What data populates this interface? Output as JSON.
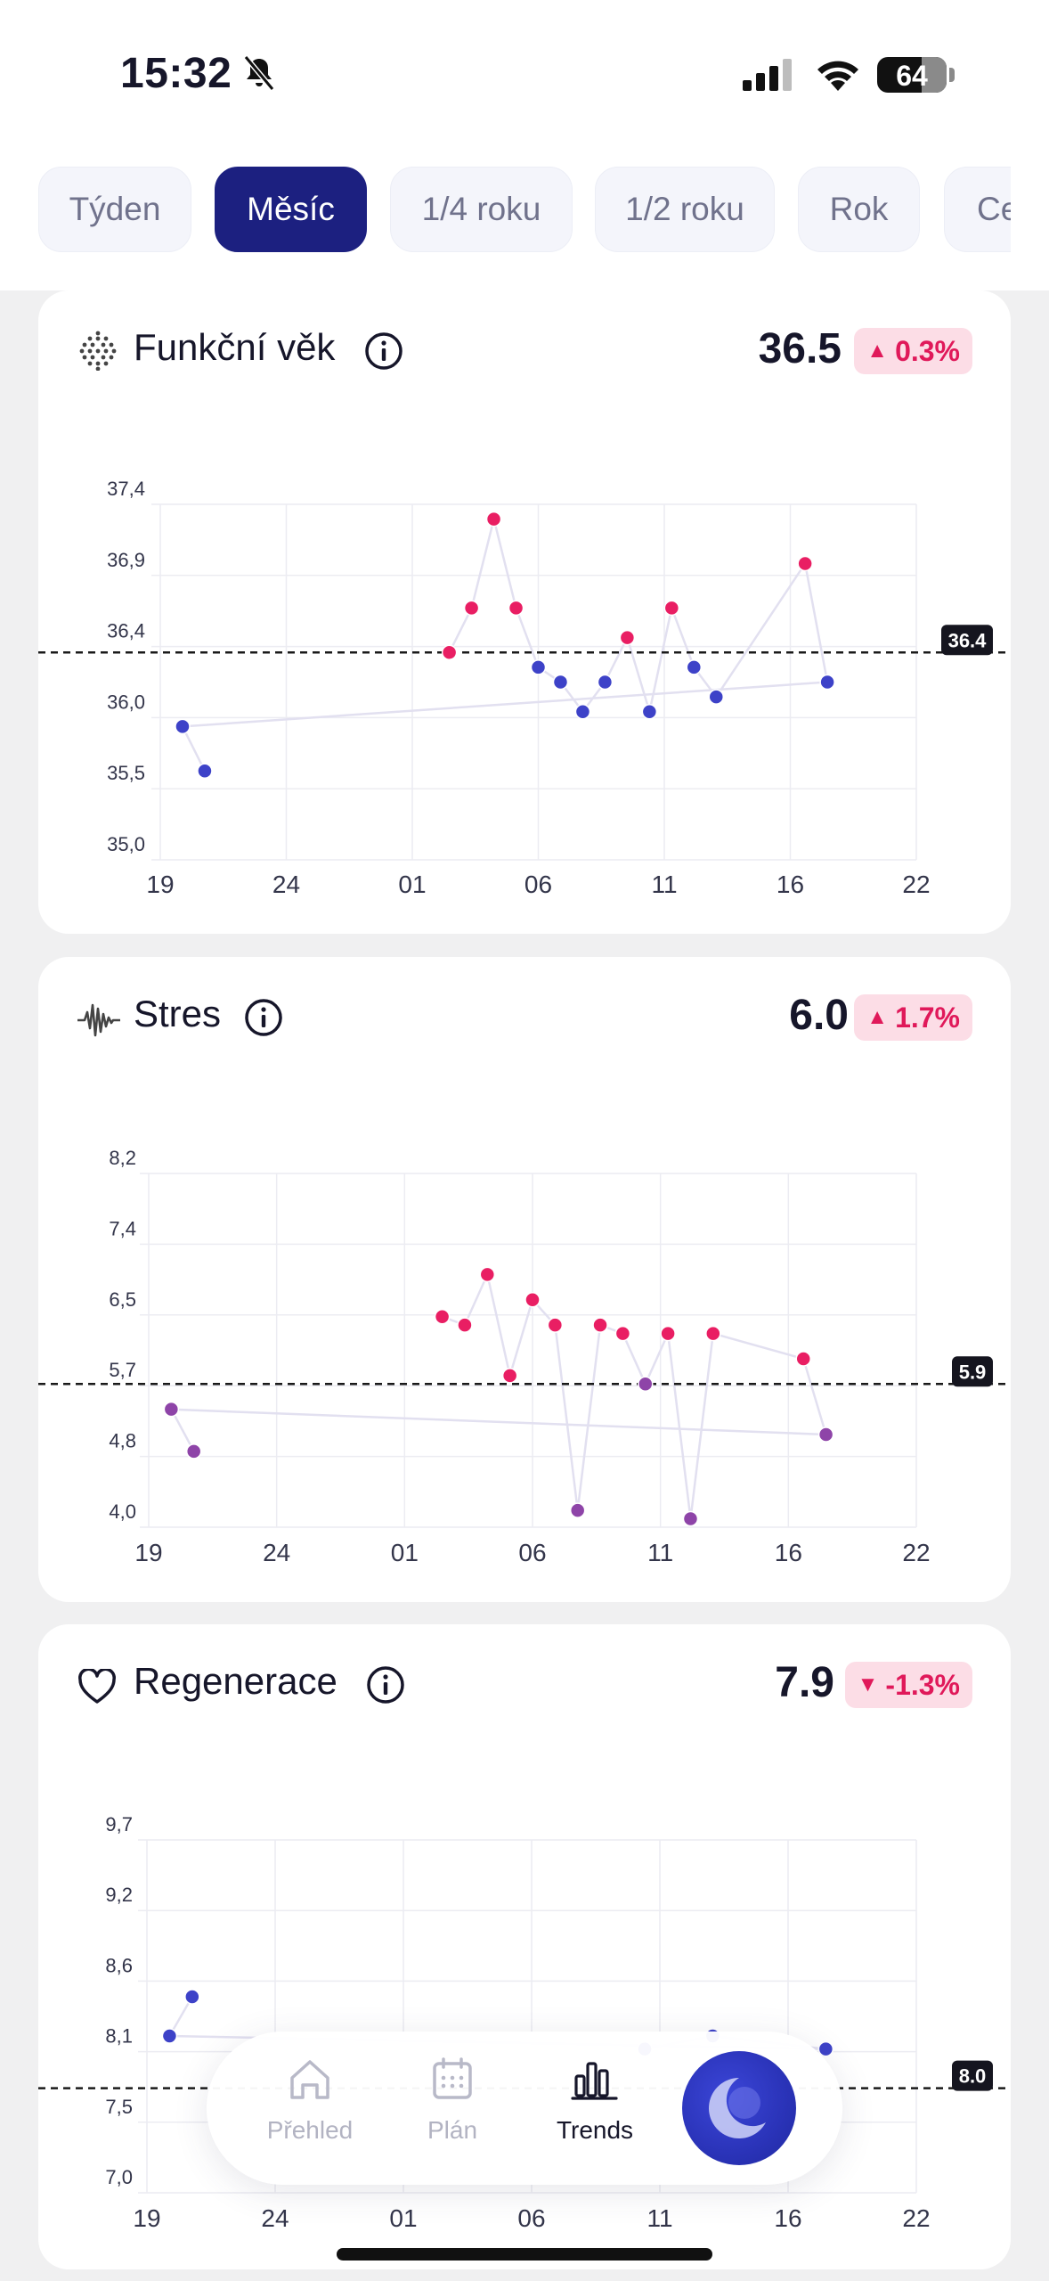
{
  "status": {
    "time": "15:32",
    "battery": "64",
    "colors": {
      "bar": "#ffffff"
    }
  },
  "tabs": [
    {
      "label": "Týden",
      "active": false
    },
    {
      "label": "Měsíc",
      "active": true
    },
    {
      "label": "1/4 roku",
      "active": false
    },
    {
      "label": "1/2 roku",
      "active": false
    },
    {
      "label": "Rok",
      "active": false
    },
    {
      "label": "Ce",
      "active": false
    }
  ],
  "cards": [
    {
      "title": "Funkční věk",
      "icon": "dots-grid-icon",
      "value": "36.5",
      "trend": "up",
      "change": "0.3%",
      "reference": "36.4"
    },
    {
      "title": "Stres",
      "icon": "waveform-icon",
      "value": "6.0",
      "trend": "up",
      "change": "1.7%",
      "reference": "5.9"
    },
    {
      "title": "Regenerace",
      "icon": "heart-icon",
      "value": "7.9",
      "trend": "down",
      "change": "-1.3%",
      "reference": "8.0"
    }
  ],
  "chart_data": [
    {
      "type": "scatter",
      "x_tick_labels": [
        "19",
        "24",
        "01",
        "06",
        "11",
        "16",
        "22"
      ],
      "y_tick_labels": [
        "37,4",
        "36,9",
        "36,4",
        "36,0",
        "35,5",
        "35,0"
      ],
      "ylim": [
        35.0,
        37.4
      ],
      "reference_line": 36.4,
      "grid": true,
      "points": [
        {
          "x": "01",
          "y": 36.4,
          "color": "#e91e63"
        },
        {
          "x": "02",
          "y": 36.7,
          "color": "#e91e63"
        },
        {
          "x": "03",
          "y": 37.3,
          "color": "#e91e63"
        },
        {
          "x": "04",
          "y": 36.7,
          "color": "#e91e63"
        },
        {
          "x": "05",
          "y": 36.3,
          "color": "#3d42c8"
        },
        {
          "x": "06",
          "y": 36.2,
          "color": "#3d42c8"
        },
        {
          "x": "07",
          "y": 36.0,
          "color": "#3d42c8"
        },
        {
          "x": "08",
          "y": 36.2,
          "color": "#3d42c8"
        },
        {
          "x": "09",
          "y": 36.5,
          "color": "#e91e63"
        },
        {
          "x": "10",
          "y": 36.0,
          "color": "#3d42c8"
        },
        {
          "x": "11",
          "y": 36.7,
          "color": "#e91e63"
        },
        {
          "x": "12",
          "y": 36.3,
          "color": "#3d42c8"
        },
        {
          "x": "13",
          "y": 36.1,
          "color": "#3d42c8"
        },
        {
          "x": "17",
          "y": 37.0,
          "color": "#e91e63"
        },
        {
          "x": "18",
          "y": 36.2,
          "color": "#3d42c8"
        },
        {
          "x": "20",
          "y": 35.9,
          "color": "#3d42c8"
        },
        {
          "x": "21",
          "y": 35.6,
          "color": "#3d42c8"
        }
      ]
    },
    {
      "type": "scatter",
      "x_tick_labels": [
        "19",
        "24",
        "01",
        "06",
        "11",
        "16",
        "22"
      ],
      "y_tick_labels": [
        "8,2",
        "7,4",
        "6,5",
        "5,7",
        "4,8",
        "4,0"
      ],
      "ylim": [
        4.0,
        8.2
      ],
      "reference_line": 5.7,
      "grid": true,
      "points": [
        {
          "x": "01",
          "y": 6.5,
          "color": "#e91e63"
        },
        {
          "x": "02",
          "y": 6.4,
          "color": "#e91e63"
        },
        {
          "x": "03",
          "y": 7.0,
          "color": "#e91e63"
        },
        {
          "x": "04",
          "y": 5.8,
          "color": "#e91e63"
        },
        {
          "x": "05",
          "y": 6.7,
          "color": "#e91e63"
        },
        {
          "x": "06",
          "y": 6.4,
          "color": "#e91e63"
        },
        {
          "x": "07",
          "y": 4.2,
          "color": "#8e44a8"
        },
        {
          "x": "08",
          "y": 6.4,
          "color": "#e91e63"
        },
        {
          "x": "09",
          "y": 6.3,
          "color": "#e91e63"
        },
        {
          "x": "10",
          "y": 5.7,
          "color": "#8e44a8"
        },
        {
          "x": "11",
          "y": 6.3,
          "color": "#e91e63"
        },
        {
          "x": "12",
          "y": 4.1,
          "color": "#8e44a8"
        },
        {
          "x": "13",
          "y": 6.3,
          "color": "#e91e63"
        },
        {
          "x": "17",
          "y": 6.0,
          "color": "#e91e63"
        },
        {
          "x": "18",
          "y": 5.1,
          "color": "#8e44a8"
        },
        {
          "x": "20",
          "y": 5.4,
          "color": "#8e44a8"
        },
        {
          "x": "21",
          "y": 4.9,
          "color": "#8e44a8"
        }
      ]
    },
    {
      "type": "scatter",
      "x_tick_labels": [
        "19",
        "24",
        "01",
        "06",
        "11",
        "16",
        "22"
      ],
      "y_tick_labels": [
        "9,7",
        "9,2",
        "8,6",
        "8,1",
        "7,5",
        "7,0"
      ],
      "ylim": [
        7.0,
        9.7
      ],
      "reference_line": 7.8,
      "grid": true,
      "points": [
        {
          "x": "10",
          "y": 8.1,
          "color": "#3d42c8"
        },
        {
          "x": "13",
          "y": 8.2,
          "color": "#3d42c8"
        },
        {
          "x": "18",
          "y": 8.1,
          "color": "#3d42c8"
        },
        {
          "x": "20",
          "y": 8.2,
          "color": "#3d42c8"
        },
        {
          "x": "21",
          "y": 8.5,
          "color": "#3d42c8"
        }
      ]
    }
  ],
  "nav": {
    "items": [
      {
        "label": "Přehled",
        "icon": "home-icon",
        "active": false
      },
      {
        "label": "Plán",
        "icon": "calendar-icon",
        "active": false
      },
      {
        "label": "Trends",
        "icon": "bar-chart-icon",
        "active": true
      }
    ],
    "center_button": "assistant-orb-icon"
  }
}
